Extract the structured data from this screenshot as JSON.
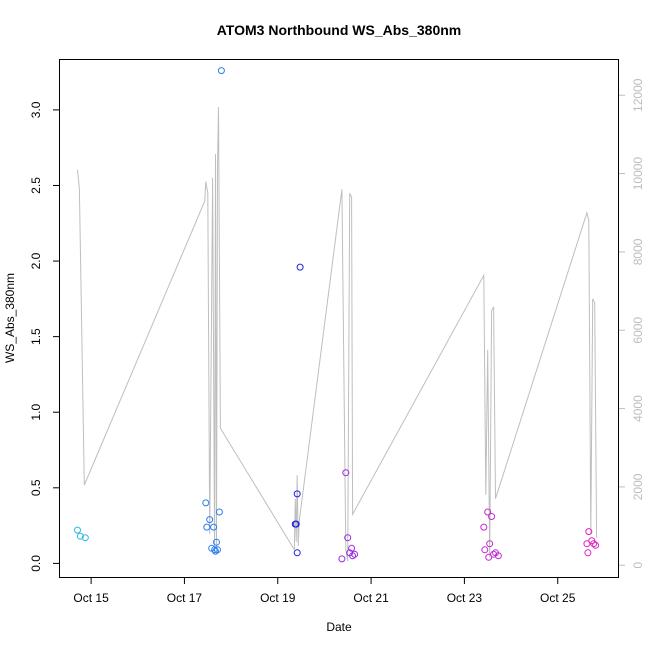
{
  "chart_data": {
    "type": "scatter",
    "title": "ATOM3 Northbound WS_Abs_380nm",
    "xlabel": "Date",
    "ylabel": "WS_Abs_380nm",
    "xlim": [
      "2016-10-14T08:00",
      "2016-10-26T07:00"
    ],
    "ylim": [
      -0.09,
      3.33
    ],
    "y2lim": [
      -300,
      12900
    ],
    "x_ticks": [
      {
        "date": "2016-10-15",
        "label": "Oct 15"
      },
      {
        "date": "2016-10-17",
        "label": "Oct 17"
      },
      {
        "date": "2016-10-19",
        "label": "Oct 19"
      },
      {
        "date": "2016-10-21",
        "label": "Oct 21"
      },
      {
        "date": "2016-10-23",
        "label": "Oct 23"
      },
      {
        "date": "2016-10-25",
        "label": "Oct 25"
      }
    ],
    "y_ticks": [
      "0.0",
      "0.5",
      "1.0",
      "1.5",
      "2.0",
      "2.5",
      "3.0"
    ],
    "y2_ticks": [
      "0",
      "2000",
      "4000",
      "6000",
      "8000",
      "10000",
      "12000"
    ],
    "grid": false,
    "colors": {
      "line": "#bebebe",
      "axis": "#000000",
      "right_axis": "#bdbdbd"
    },
    "points": [
      {
        "x": "2016-10-14T17:00",
        "y": 0.22,
        "color": "#29b6e8"
      },
      {
        "x": "2016-10-14T18:30",
        "y": 0.18,
        "color": "#29b6e8"
      },
      {
        "x": "2016-10-14T21:00",
        "y": 0.17,
        "color": "#29b6e8"
      },
      {
        "x": "2016-10-17T11:00",
        "y": 0.4,
        "color": "#2d7ff0"
      },
      {
        "x": "2016-10-17T11:30",
        "y": 0.24,
        "color": "#2d7ff0"
      },
      {
        "x": "2016-10-17T13:00",
        "y": 0.29,
        "color": "#2d7ff0"
      },
      {
        "x": "2016-10-17T14:00",
        "y": 0.1,
        "color": "#2d7ff0"
      },
      {
        "x": "2016-10-17T15:00",
        "y": 0.24,
        "color": "#2d7ff0"
      },
      {
        "x": "2016-10-17T15:30",
        "y": 0.09,
        "color": "#2d7ff0"
      },
      {
        "x": "2016-10-17T16:00",
        "y": 0.08,
        "color": "#2d7ff0"
      },
      {
        "x": "2016-10-17T16:30",
        "y": 0.14,
        "color": "#2d7ff0"
      },
      {
        "x": "2016-10-17T17:00",
        "y": 0.09,
        "color": "#2d7ff0"
      },
      {
        "x": "2016-10-17T18:00",
        "y": 0.34,
        "color": "#2d7ff0"
      },
      {
        "x": "2016-10-17T19:00",
        "y": 3.26,
        "color": "#2d7ff0"
      },
      {
        "x": "2016-10-19T09:00",
        "y": 0.26,
        "color": "#2020e0"
      },
      {
        "x": "2016-10-19T09:30",
        "y": 0.26,
        "color": "#2020e0"
      },
      {
        "x": "2016-10-19T10:00",
        "y": 0.46,
        "color": "#2020e0"
      },
      {
        "x": "2016-10-19T10:00",
        "y": 0.07,
        "color": "#2020e0"
      },
      {
        "x": "2016-10-19T11:30",
        "y": 1.96,
        "color": "#2020e0"
      },
      {
        "x": "2016-10-20T09:00",
        "y": 0.03,
        "color": "#9b2ae0"
      },
      {
        "x": "2016-10-20T11:00",
        "y": 0.6,
        "color": "#9b2ae0"
      },
      {
        "x": "2016-10-20T12:00",
        "y": 0.17,
        "color": "#9b2ae0"
      },
      {
        "x": "2016-10-20T13:00",
        "y": 0.07,
        "color": "#9b2ae0"
      },
      {
        "x": "2016-10-20T14:00",
        "y": 0.1,
        "color": "#9b2ae0"
      },
      {
        "x": "2016-10-20T14:30",
        "y": 0.05,
        "color": "#9b2ae0"
      },
      {
        "x": "2016-10-20T15:30",
        "y": 0.06,
        "color": "#9b2ae0"
      },
      {
        "x": "2016-10-23T10:00",
        "y": 0.24,
        "color": "#c02ad0"
      },
      {
        "x": "2016-10-23T10:30",
        "y": 0.09,
        "color": "#c02ad0"
      },
      {
        "x": "2016-10-23T12:00",
        "y": 0.34,
        "color": "#c02ad0"
      },
      {
        "x": "2016-10-23T12:30",
        "y": 0.04,
        "color": "#c02ad0"
      },
      {
        "x": "2016-10-23T13:00",
        "y": 0.13,
        "color": "#c02ad0"
      },
      {
        "x": "2016-10-23T14:00",
        "y": 0.31,
        "color": "#c02ad0"
      },
      {
        "x": "2016-10-23T15:00",
        "y": 0.06,
        "color": "#c02ad0"
      },
      {
        "x": "2016-10-23T16:00",
        "y": 0.07,
        "color": "#c02ad0"
      },
      {
        "x": "2016-10-23T17:30",
        "y": 0.05,
        "color": "#c02ad0"
      },
      {
        "x": "2016-10-25T15:00",
        "y": 0.13,
        "color": "#e020c0"
      },
      {
        "x": "2016-10-25T15:30",
        "y": 0.07,
        "color": "#e020c0"
      },
      {
        "x": "2016-10-25T16:00",
        "y": 0.21,
        "color": "#e020c0"
      },
      {
        "x": "2016-10-25T17:30",
        "y": 0.15,
        "color": "#e020c0"
      },
      {
        "x": "2016-10-25T18:30",
        "y": 0.13,
        "color": "#e020c0"
      },
      {
        "x": "2016-10-25T19:30",
        "y": 0.12,
        "color": "#e020c0"
      }
    ],
    "line": [
      [
        "2016-10-14T17:00",
        10100
      ],
      [
        "2016-10-14T18:00",
        9600
      ],
      [
        "2016-10-14T20:30",
        2050
      ],
      [
        "2016-10-17T10:30",
        9300
      ],
      [
        "2016-10-17T11:00",
        9800
      ],
      [
        "2016-10-17T12:00",
        9500
      ],
      [
        "2016-10-17T13:00",
        800
      ],
      [
        "2016-10-17T14:00",
        7000
      ],
      [
        "2016-10-17T14:30",
        9900
      ],
      [
        "2016-10-17T15:30",
        300
      ],
      [
        "2016-10-17T16:00",
        10500
      ],
      [
        "2016-10-17T16:30",
        300
      ],
      [
        "2016-10-17T17:00",
        10200
      ],
      [
        "2016-10-17T17:30",
        11700
      ],
      [
        "2016-10-17T18:30",
        3500
      ],
      [
        "2016-10-19T08:30",
        400
      ],
      [
        "2016-10-19T09:00",
        1700
      ],
      [
        "2016-10-19T09:30",
        600
      ],
      [
        "2016-10-19T10:00",
        2300
      ],
      [
        "2016-10-19T10:30",
        500
      ],
      [
        "2016-10-19T11:00",
        1100
      ],
      [
        "2016-10-20T09:00",
        9600
      ],
      [
        "2016-10-20T11:00",
        400
      ],
      [
        "2016-10-20T12:00",
        100
      ],
      [
        "2016-10-20T13:00",
        9500
      ],
      [
        "2016-10-20T14:00",
        9400
      ],
      [
        "2016-10-20T14:30",
        1300
      ],
      [
        "2016-10-23T10:00",
        7400
      ],
      [
        "2016-10-23T11:00",
        1800
      ],
      [
        "2016-10-23T12:00",
        5500
      ],
      [
        "2016-10-23T13:00",
        200
      ],
      [
        "2016-10-23T14:00",
        6500
      ],
      [
        "2016-10-23T15:00",
        6600
      ],
      [
        "2016-10-23T16:00",
        1700
      ],
      [
        "2016-10-25T15:00",
        9000
      ],
      [
        "2016-10-25T16:00",
        8800
      ],
      [
        "2016-10-25T17:00",
        800
      ],
      [
        "2016-10-25T18:00",
        6800
      ],
      [
        "2016-10-25T19:00",
        6700
      ],
      [
        "2016-10-25T20:00",
        700
      ]
    ]
  }
}
